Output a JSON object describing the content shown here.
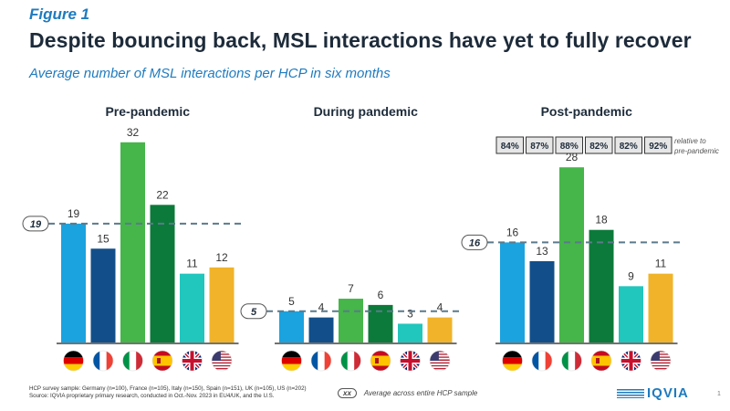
{
  "header": {
    "figure_label": "Figure 1",
    "title": "Despite bouncing back, MSL interactions have yet to fully recover",
    "subtitle": "Average number of MSL interactions per HCP in six months"
  },
  "chart_data": {
    "type": "bar",
    "categories": [
      "Germany",
      "France",
      "Italy",
      "Spain",
      "UK",
      "US"
    ],
    "category_icons": [
      "flag-germany-icon",
      "flag-france-icon",
      "flag-italy-icon",
      "flag-spain-icon",
      "flag-uk-icon",
      "flag-us-icon"
    ],
    "colors": [
      "#1aa3df",
      "#124f8a",
      "#46b54a",
      "#0c7a3a",
      "#21c6bd",
      "#f0b329"
    ],
    "groups": [
      {
        "name": "Pre-pandemic",
        "values": [
          19,
          15,
          32,
          22,
          11,
          12
        ],
        "average": 19,
        "average_label": "19"
      },
      {
        "name": "During pandemic",
        "values": [
          5,
          4,
          7,
          6,
          3,
          4
        ],
        "average": 5,
        "average_label": "5"
      },
      {
        "name": "Post-pandemic",
        "values": [
          16,
          13,
          28,
          18,
          9,
          11
        ],
        "average": 16,
        "average_label": "16"
      }
    ],
    "relative_to_prepandemic": [
      "84%",
      "87%",
      "88%",
      "82%",
      "82%",
      "92%"
    ],
    "relative_note": "relative to\npre-pandemic",
    "average_line_color": "#5b7a8c",
    "ylim": [
      0,
      32
    ]
  },
  "legend": {
    "avg_symbol": "xx",
    "avg_text": "Average  across entire HCP sample"
  },
  "footnote": {
    "line1": "HCP survey sample: Germany (n=100), France (n=105), Italy (n=150), Spain (n=151), UK (n=105), US (n=202)",
    "line2": "Source: IQVIA proprietary primary research, conducted in Oct.-Nov. 2023 in EU4/UK, and the U.S."
  },
  "logo": {
    "text": "IQVIA"
  },
  "page_number": "1"
}
